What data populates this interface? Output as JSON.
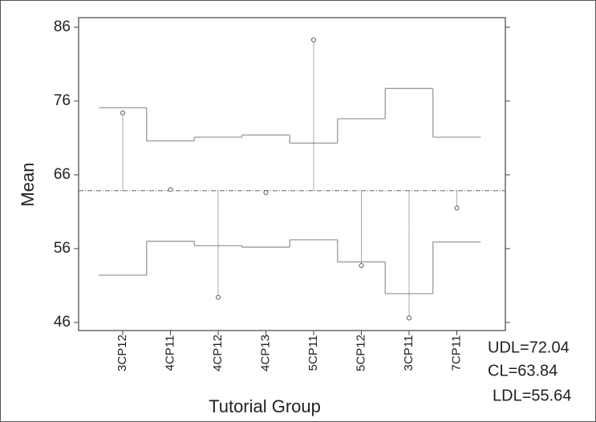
{
  "chart_data": {
    "type": "anom",
    "y_label": "Mean",
    "x_label": "Tutorial Group",
    "categories": [
      "3CP12",
      "4CP11",
      "4CP12",
      "4CP13",
      "5CP11",
      "5CP12",
      "3CP11",
      "7CP11"
    ],
    "series": [
      {
        "name": "Mean",
        "color": "#555555",
        "values": [
          74.4,
          64.0,
          49.4,
          63.6,
          84.3,
          53.7,
          46.6,
          61.5
        ]
      },
      {
        "name": "UDL",
        "color": "#9a9a9a",
        "values": [
          75.1,
          70.6,
          71.1,
          71.4,
          70.3,
          73.6,
          77.7,
          71.1
        ]
      },
      {
        "name": "LDL",
        "color": "#9a9a9a",
        "values": [
          52.4,
          57.0,
          56.4,
          56.2,
          57.2,
          54.2,
          49.9,
          56.9
        ]
      }
    ],
    "center_line": 63.84,
    "limit_labels": [
      "UDL=72.04",
      "CL=63.84",
      "LDL=55.64"
    ],
    "ylim": [
      44.9,
      87.3
    ],
    "yticks": [
      46,
      56,
      66,
      76,
      86
    ],
    "grid": false
  }
}
